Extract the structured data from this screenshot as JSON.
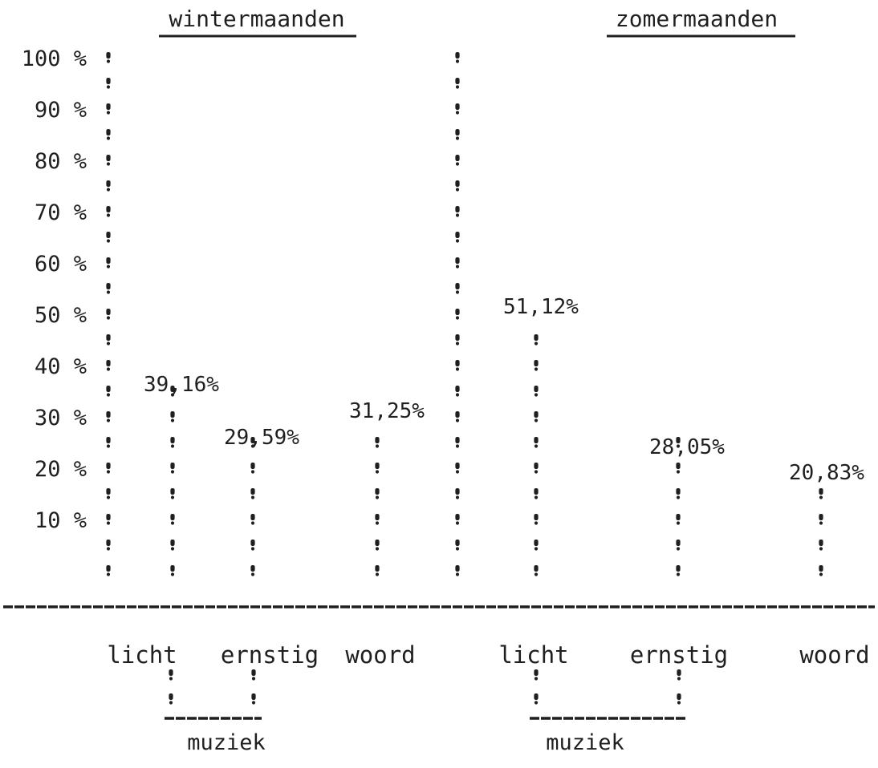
{
  "chart_data": {
    "type": "bar",
    "panels": [
      {
        "title": "wintermaanden",
        "categories": [
          "licht",
          "ernstig",
          "woord"
        ],
        "values": [
          39.16,
          29.59,
          31.25
        ],
        "value_labels": [
          "39,16%",
          "29,59%",
          "31,25%"
        ],
        "group_label": "muziek",
        "grouped_categories": [
          "licht",
          "ernstig"
        ]
      },
      {
        "title": "zomermaanden",
        "categories": [
          "licht",
          "ernstig",
          "woord"
        ],
        "values": [
          51.12,
          28.05,
          20.83
        ],
        "value_labels": [
          "51,12%",
          "28,05%",
          "20,83%"
        ],
        "group_label": "muziek",
        "grouped_categories": [
          "licht",
          "ernstig"
        ]
      }
    ],
    "yticks": [
      "100 %",
      "90 %",
      "80 %",
      "70 %",
      "60 %",
      "50 %",
      "40 %",
      "30 %",
      "20 %",
      "10 %"
    ],
    "ylim": [
      0,
      100
    ],
    "grid": false,
    "legend": "none",
    "mark_style": "typed dotted columns",
    "ink_color": "#1f1f1f"
  }
}
